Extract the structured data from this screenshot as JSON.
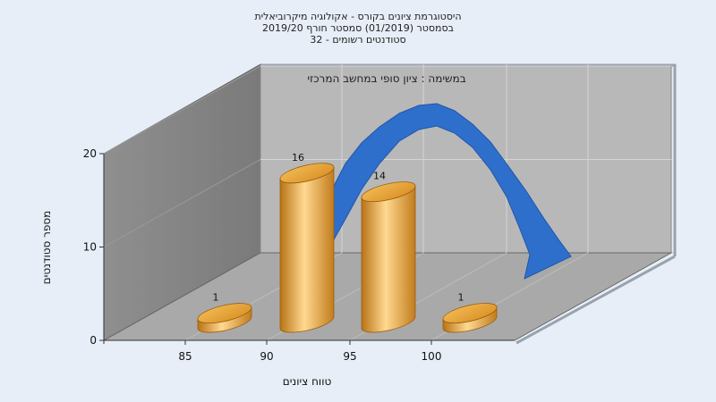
{
  "chart_data": {
    "type": "bar",
    "title_lines": [
      "היסטוגרמת ציונים בקורס - אקולוגיה מיקרוביאלית",
      "בסמסטר  (01/2019)  סמסטר חורף 2019/20",
      "סטודנטים רשומים - 32"
    ],
    "annotation": "במשימה : ציון סופי במחשב המרכזי",
    "xlabel": "טווח ציונים",
    "ylabel": "מספר סטודנטים",
    "categories": [
      "85",
      "90",
      "95",
      "100"
    ],
    "values": [
      1,
      16,
      14,
      1
    ],
    "ylim": [
      0,
      20
    ],
    "yticks": [
      0,
      10,
      20
    ],
    "curve": "normal distribution overlay",
    "grid": true,
    "legend": "none",
    "colors": {
      "bar": "#e5a53a",
      "curve": "#2f6fcc",
      "background": "#e7eef7",
      "wall": "#8a8a8a",
      "back_wall": "#b7b7b7"
    }
  }
}
